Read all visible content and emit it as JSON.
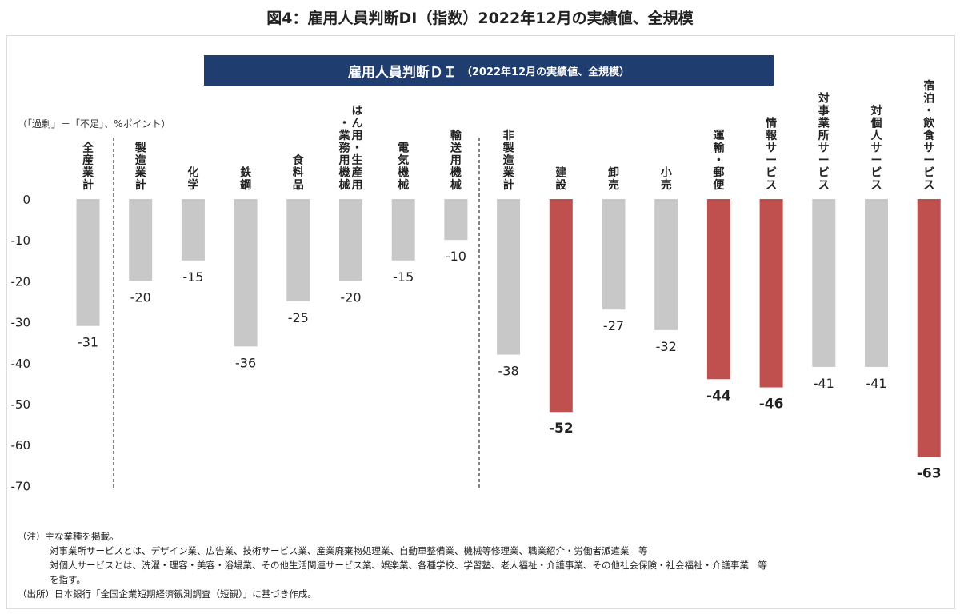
{
  "page_title": "図4：雇用人員判断DI（指数）2022年12月の実績値、全規模",
  "banner": {
    "main": "雇用人員判断ＤＩ",
    "sub": "（2022年12月の実績値、全規模）"
  },
  "unit_label": "（「過剰」－「不足」、%ポイント）",
  "colors": {
    "gray": "#c8c8c8",
    "red": "#c0504d",
    "banner": "#1f3d6e"
  },
  "chart_data": {
    "type": "bar",
    "ylim": [
      -70,
      0
    ],
    "yticks": [
      "0",
      "-10",
      "-20",
      "-30",
      "-40",
      "-50",
      "-60",
      "-70"
    ],
    "grid": false,
    "categories": [
      [
        "全産業計"
      ],
      [
        "製造業計"
      ],
      [
        "化学"
      ],
      [
        "鉄鋼"
      ],
      [
        "食料品"
      ],
      [
        "はん用・生産用",
        "・業務用機械"
      ],
      [
        "電気機械"
      ],
      [
        "輸送用機械"
      ],
      [
        "非製造業計"
      ],
      [
        "建設"
      ],
      [
        "卸売"
      ],
      [
        "小売"
      ],
      [
        "運輸・郵便"
      ],
      [
        "情報サービス"
      ],
      [
        "対事業所サービス"
      ],
      [
        "対個人サービス"
      ],
      [
        "宿泊・飲食サービス"
      ]
    ],
    "values": [
      -31,
      -20,
      -15,
      -36,
      -25,
      -20,
      -15,
      -10,
      -38,
      -52,
      -27,
      -32,
      -44,
      -46,
      -41,
      -41,
      -63
    ],
    "labels": [
      "-31",
      "-20",
      "-15",
      "-36",
      "-25",
      "-20",
      "-15",
      "-10",
      "-38",
      "-52",
      "-27",
      "-32",
      "-44",
      "-46",
      "-41",
      "-41",
      "-63"
    ],
    "highlight": [
      false,
      false,
      false,
      false,
      false,
      false,
      false,
      false,
      false,
      true,
      false,
      false,
      true,
      true,
      false,
      false,
      true
    ]
  },
  "notes": [
    "（注）主な業種を掲載。",
    "対事業所サービスとは、デザイン業、広告業、技術サービス業、産業廃棄物処理業、自動車整備業、機械等修理業、職業紹介・労働者派遣業　等",
    "対個人サービスとは、洗濯・理容・美容・浴場業、その他生活関連サービス業、娯楽業、各種学校、学習塾、老人福祉・介護事業、その他社会保険・社会福祉・介護事業　等",
    "を指す。",
    "（出所）日本銀行「全国企業短期経済観測調査（短観）」に基づき作成。"
  ]
}
